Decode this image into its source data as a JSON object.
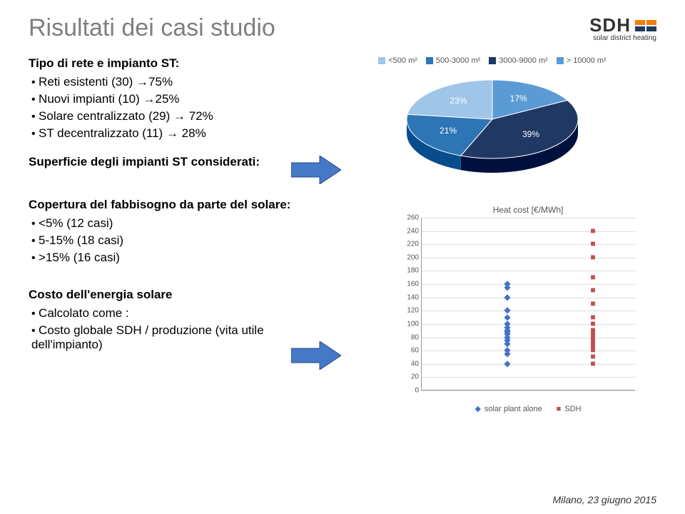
{
  "slide": {
    "title": "Risultati dei casi studio",
    "footer": "Milano, 23 giugno 2015"
  },
  "logo": {
    "text": "SDH",
    "subtitle": "solar district heating",
    "bar_colors": [
      "#f57c00",
      "#f57c00",
      "#1f3a5f",
      "#1f3a5f"
    ]
  },
  "section1": {
    "head": "Tipo di rete e impianto ST:",
    "items": [
      "Reti esistenti (30) →75%",
      "Nuovi impianti (10) →25%",
      "Solare centralizzato (29) → 72%",
      "ST decentralizzato (11) → 28%"
    ]
  },
  "section2": {
    "head": "Superficie degli impianti ST considerati:"
  },
  "section3": {
    "head": "Copertura del fabbisogno da parte del solare:",
    "items": [
      "<5%  (12 casi)",
      "5-15% (18 casi)",
      ">15% (16 casi)"
    ]
  },
  "section4": {
    "head": "Costo dell'energia solare",
    "items": [
      "Calcolato come :",
      "Costo globale SDH / produzione (vita utile dell'impianto)"
    ]
  },
  "pie": {
    "legend": [
      {
        "label": "<500 m²",
        "color": "#9fc5e8"
      },
      {
        "label": "500-3000 m²",
        "color": "#2e75b6"
      },
      {
        "label": "3000-9000 m²",
        "color": "#203864"
      },
      {
        "label": "> 10000 m²",
        "color": "#5b9bd5"
      }
    ],
    "slices": [
      {
        "label": "17%",
        "value": 17,
        "color": "#5b9bd5"
      },
      {
        "label": "39%",
        "value": 39,
        "color": "#203864"
      },
      {
        "label": "21%",
        "value": 21,
        "color": "#2e75b6"
      },
      {
        "label": "23%",
        "value": 23,
        "color": "#9fc5e8"
      }
    ]
  },
  "scatter": {
    "title": "Heat cost [€/MWh]",
    "ylim": [
      0,
      260
    ],
    "ytick_step": 20,
    "xlim": [
      0,
      2.5
    ],
    "background_color": "#ffffff",
    "grid_color": "#dddddd",
    "series": [
      {
        "name": "solar plant alone",
        "marker": "diamond",
        "color": "#4472c4",
        "points": [
          [
            1,
            40
          ],
          [
            1,
            55
          ],
          [
            1,
            60
          ],
          [
            1,
            70
          ],
          [
            1,
            75
          ],
          [
            1,
            80
          ],
          [
            1,
            85
          ],
          [
            1,
            88
          ],
          [
            1,
            90
          ],
          [
            1,
            95
          ],
          [
            1,
            100
          ],
          [
            1,
            110
          ],
          [
            1,
            120
          ],
          [
            1,
            140
          ],
          [
            1,
            155
          ],
          [
            1,
            160
          ]
        ]
      },
      {
        "name": "SDH",
        "marker": "square",
        "color": "#c0504d",
        "points": [
          [
            2,
            40
          ],
          [
            2,
            50
          ],
          [
            2,
            60
          ],
          [
            2,
            65
          ],
          [
            2,
            70
          ],
          [
            2,
            75
          ],
          [
            2,
            80
          ],
          [
            2,
            85
          ],
          [
            2,
            90
          ],
          [
            2,
            100
          ],
          [
            2,
            110
          ],
          [
            2,
            130
          ],
          [
            2,
            150
          ],
          [
            2,
            170
          ],
          [
            2,
            200
          ],
          [
            2,
            220
          ],
          [
            2,
            240
          ]
        ]
      }
    ]
  },
  "arrows": {
    "color": "#4472c4"
  }
}
